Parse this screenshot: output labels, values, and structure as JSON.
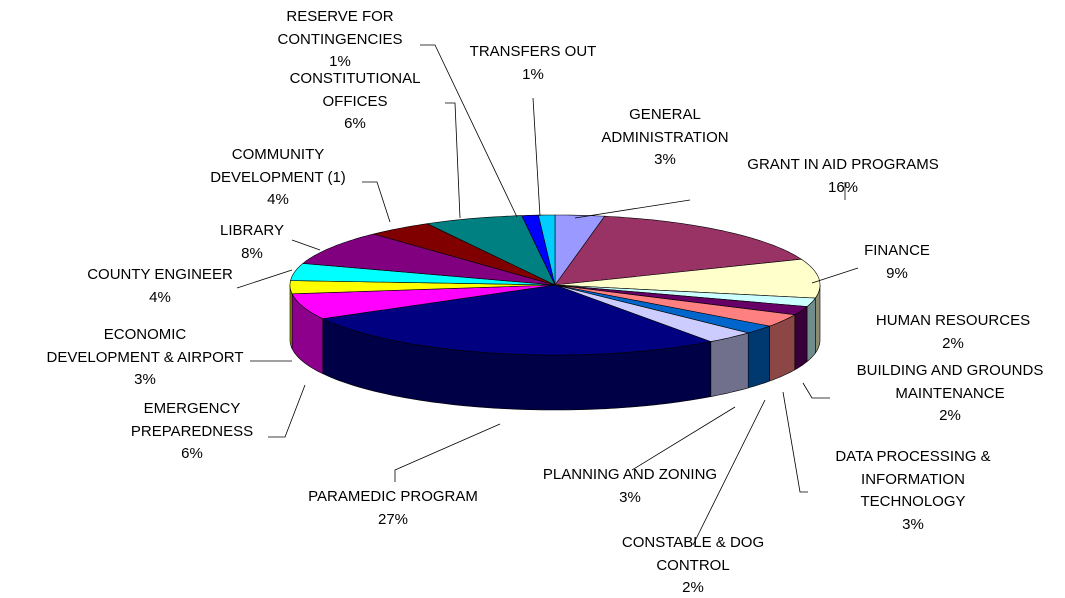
{
  "chart_data": {
    "type": "pie3d",
    "categories": [
      "GENERAL\nADMINISTRATION",
      "GRANT IN AID PROGRAMS",
      "FINANCE",
      "HUMAN RESOURCES",
      "BUILDING AND GROUNDS\nMAINTENANCE",
      "DATA PROCESSING &\nINFORMATION\nTECHNOLOGY",
      "CONSTABLE & DOG\nCONTROL",
      "PLANNING AND ZONING",
      "PARAMEDIC PROGRAM",
      "EMERGENCY\nPREPAREDNESS",
      "ECONOMIC\nDEVELOPMENT & AIRPORT",
      "COUNTY ENGINEER",
      "LIBRARY",
      "COMMUNITY\nDEVELOPMENT (1)",
      "CONSTITUTIONAL\nOFFICES",
      "RESERVE FOR\nCONTINGENCIES",
      "TRANSFERS OUT"
    ],
    "values": [
      3,
      16,
      9,
      2,
      2,
      3,
      2,
      3,
      27,
      6,
      3,
      4,
      8,
      4,
      6,
      1,
      1
    ],
    "value_labels": [
      "3%",
      "16%",
      "9%",
      "2%",
      "2%",
      "3%",
      "2%",
      "3%",
      "27%",
      "6%",
      "3%",
      "4%",
      "8%",
      "4%",
      "6%",
      "1%",
      "1%"
    ],
    "colors": [
      "#9999ff",
      "#993366",
      "#ffffcc",
      "#ccffff",
      "#660066",
      "#ff8080",
      "#0066cc",
      "#ccccff",
      "#000080",
      "#ff00ff",
      "#ffff00",
      "#00ffff",
      "#800080",
      "#800000",
      "#008080",
      "#0000ff",
      "#00ccff"
    ]
  }
}
